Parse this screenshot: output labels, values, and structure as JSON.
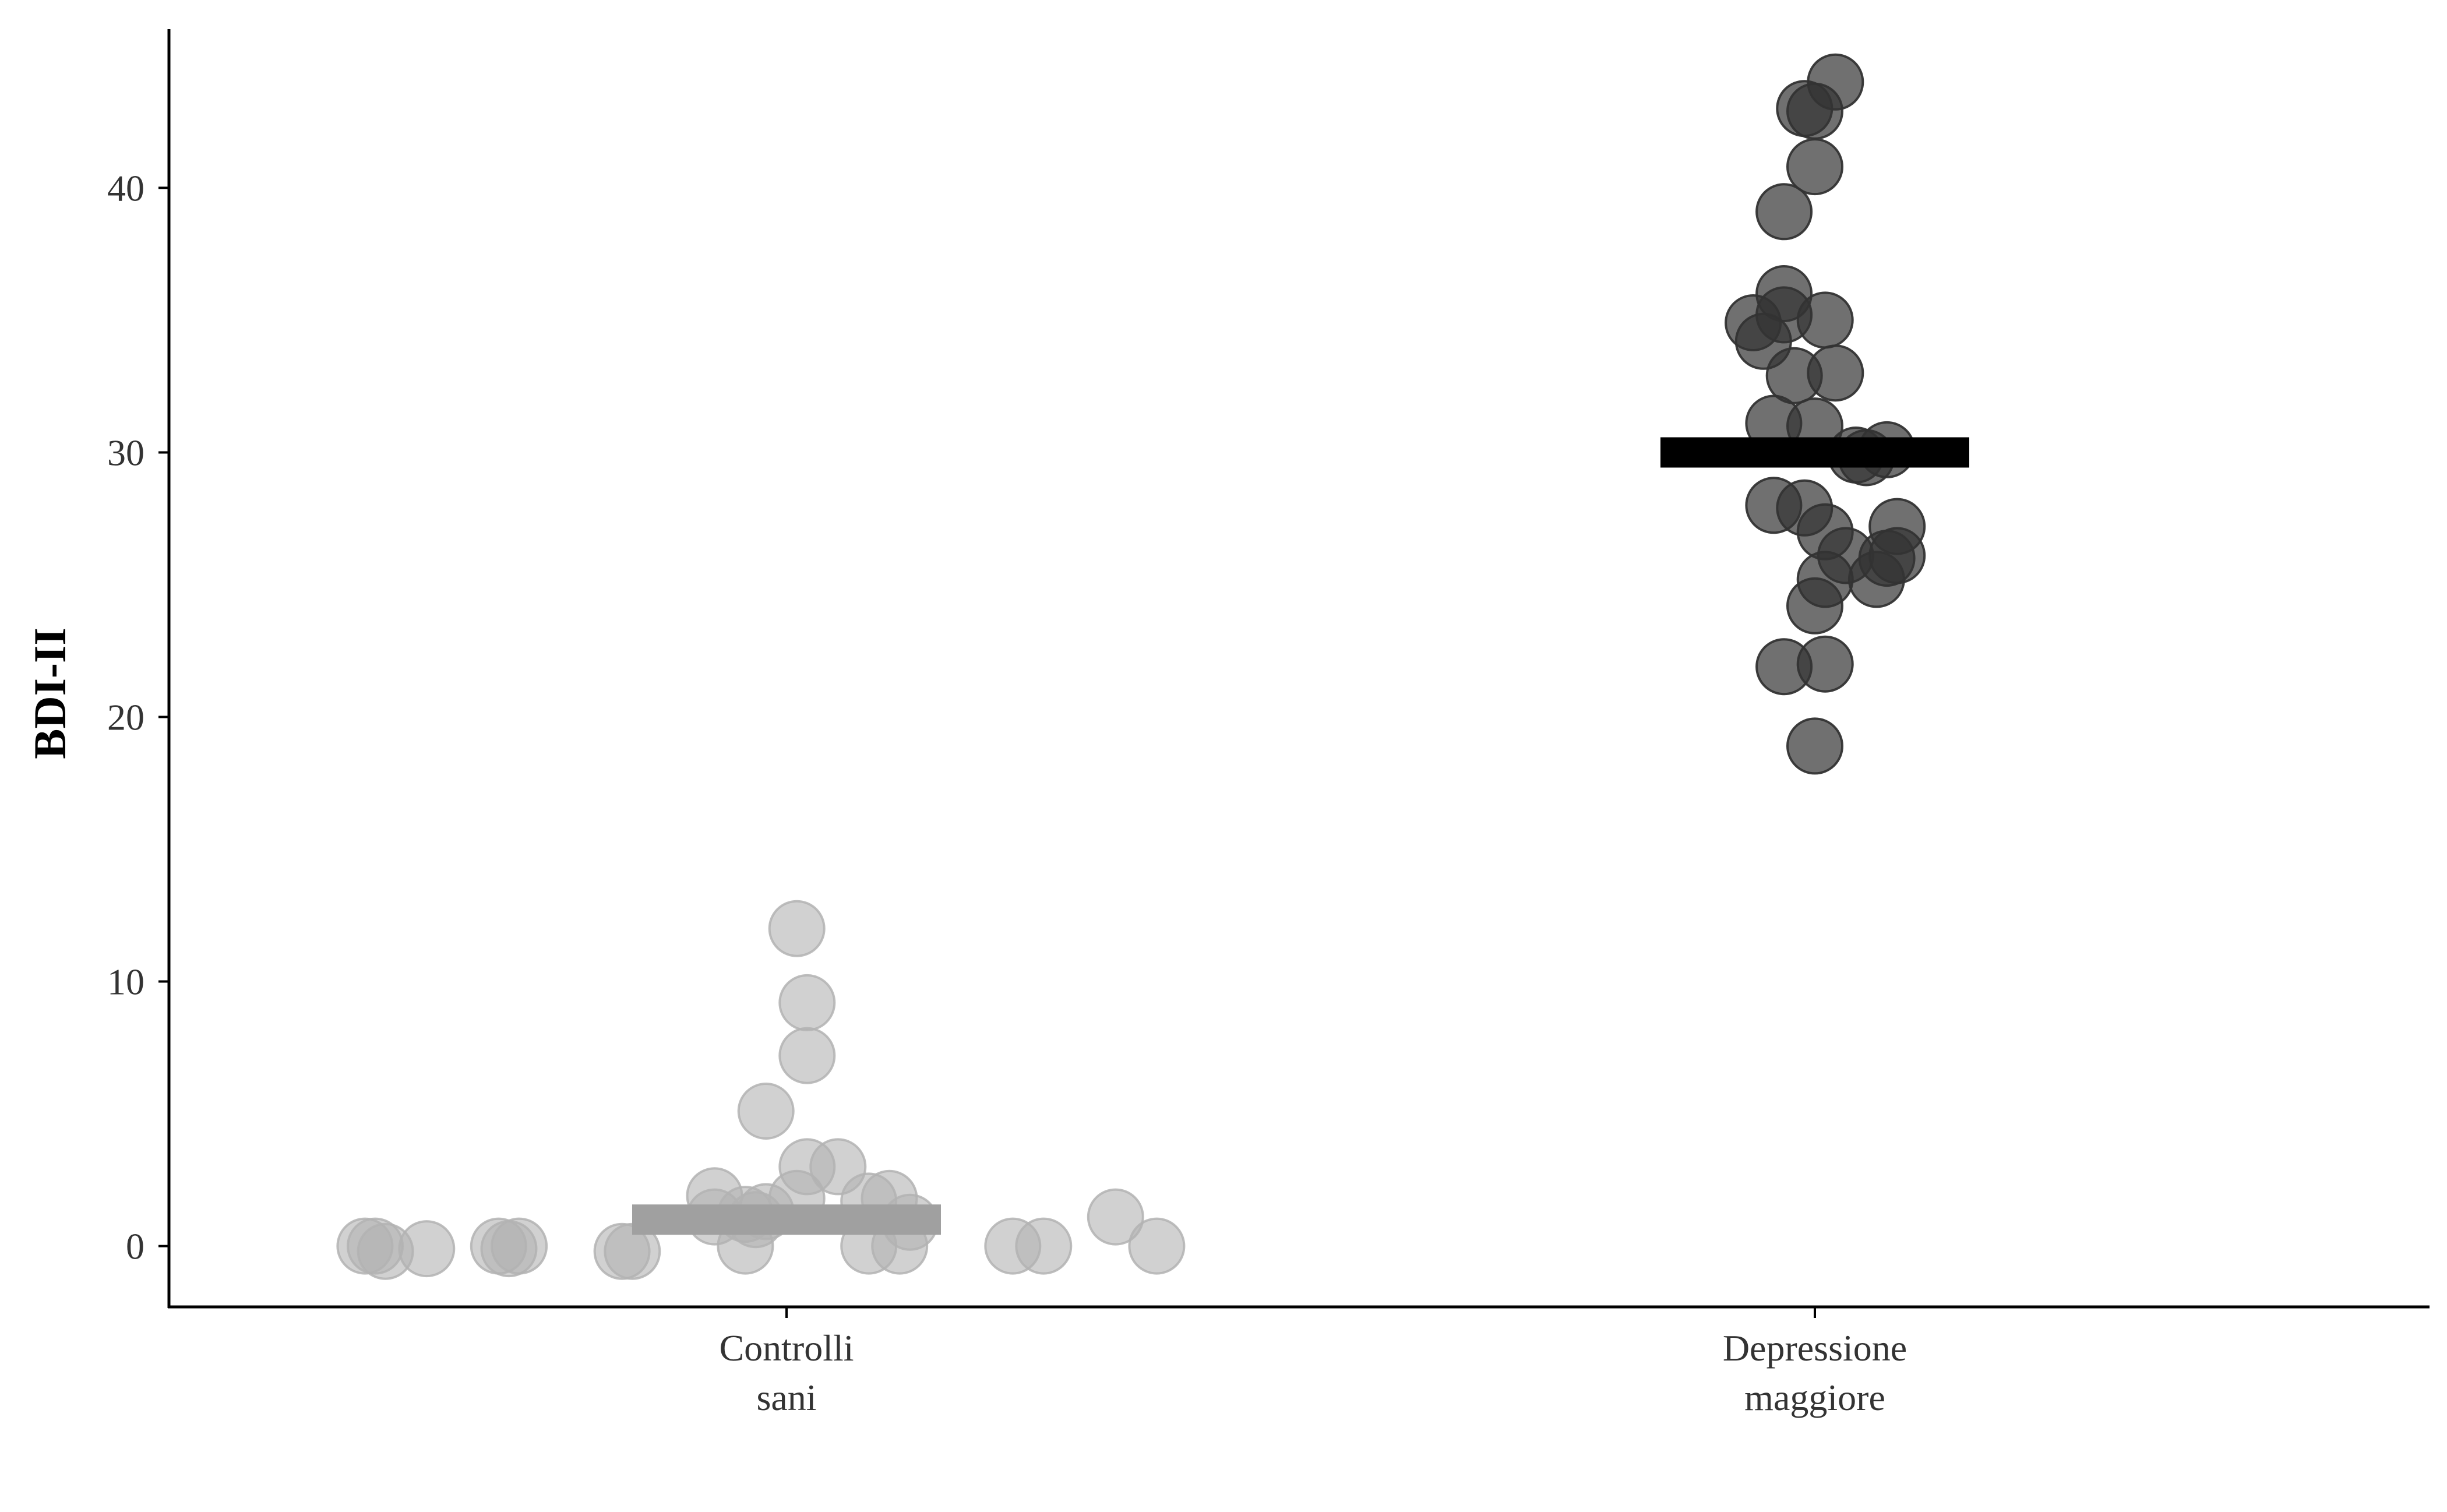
{
  "chart_data": {
    "type": "scatter",
    "title": "",
    "xlabel": "",
    "ylabel": "BDI-II",
    "ylim": [
      -2.3,
      46
    ],
    "yticks": [
      0,
      10,
      20,
      30,
      40
    ],
    "grid": false,
    "legend": "none",
    "categories": [
      {
        "label_lines": [
          "Controlli",
          "sani"
        ]
      },
      {
        "label_lines": [
          "Depressione",
          "maggiore"
        ]
      }
    ],
    "series": [
      {
        "name": "Controlli sani",
        "color": "#b3b3b3",
        "fill_opacity": 0.6,
        "mean": 1.0,
        "mean_color": "#a0a0a0",
        "points": [
          {
            "jitter": -0.41,
            "y": 0.0
          },
          {
            "jitter": -0.4,
            "y": 0.0
          },
          {
            "jitter": -0.39,
            "y": -0.2
          },
          {
            "jitter": -0.35,
            "y": -0.1
          },
          {
            "jitter": -0.28,
            "y": 0.0
          },
          {
            "jitter": -0.27,
            "y": -0.1
          },
          {
            "jitter": -0.26,
            "y": 0.0
          },
          {
            "jitter": -0.16,
            "y": -0.2
          },
          {
            "jitter": -0.15,
            "y": -0.2
          },
          {
            "jitter": -0.07,
            "y": 1.9
          },
          {
            "jitter": -0.07,
            "y": 1.1
          },
          {
            "jitter": -0.04,
            "y": 1.2
          },
          {
            "jitter": -0.04,
            "y": 0.0
          },
          {
            "jitter": -0.03,
            "y": 1.0
          },
          {
            "jitter": -0.02,
            "y": 1.3
          },
          {
            "jitter": -0.02,
            "y": 5.1
          },
          {
            "jitter": 0.01,
            "y": 12.0
          },
          {
            "jitter": 0.01,
            "y": 1.8
          },
          {
            "jitter": 0.02,
            "y": 9.2
          },
          {
            "jitter": 0.02,
            "y": 7.2
          },
          {
            "jitter": 0.02,
            "y": 3.0
          },
          {
            "jitter": 0.05,
            "y": 3.0
          },
          {
            "jitter": 0.08,
            "y": 1.7
          },
          {
            "jitter": 0.08,
            "y": 0.0
          },
          {
            "jitter": 0.1,
            "y": 1.8
          },
          {
            "jitter": 0.11,
            "y": 0.0
          },
          {
            "jitter": 0.12,
            "y": 0.9
          },
          {
            "jitter": 0.22,
            "y": 0.0
          },
          {
            "jitter": 0.25,
            "y": 0.0
          },
          {
            "jitter": 0.32,
            "y": 1.1
          },
          {
            "jitter": 0.36,
            "y": 0.0
          }
        ]
      },
      {
        "name": "Depressione maggiore",
        "color": "#333333",
        "fill_opacity": 0.7,
        "mean": 30.0,
        "mean_color": "#000000",
        "points": [
          {
            "jitter": 0.02,
            "y": 44.0
          },
          {
            "jitter": -0.01,
            "y": 43.0
          },
          {
            "jitter": 0.0,
            "y": 42.9
          },
          {
            "jitter": 0.0,
            "y": 40.8
          },
          {
            "jitter": -0.03,
            "y": 39.1
          },
          {
            "jitter": -0.03,
            "y": 36.0
          },
          {
            "jitter": -0.03,
            "y": 35.2
          },
          {
            "jitter": -0.06,
            "y": 34.9
          },
          {
            "jitter": -0.05,
            "y": 34.2
          },
          {
            "jitter": 0.01,
            "y": 35.0
          },
          {
            "jitter": -0.02,
            "y": 32.9
          },
          {
            "jitter": 0.02,
            "y": 33.0
          },
          {
            "jitter": -0.04,
            "y": 31.1
          },
          {
            "jitter": 0.0,
            "y": 31.0
          },
          {
            "jitter": 0.04,
            "y": 29.9
          },
          {
            "jitter": 0.05,
            "y": 29.8
          },
          {
            "jitter": 0.07,
            "y": 30.1
          },
          {
            "jitter": -0.04,
            "y": 28.0
          },
          {
            "jitter": -0.01,
            "y": 27.9
          },
          {
            "jitter": 0.01,
            "y": 27.0
          },
          {
            "jitter": 0.08,
            "y": 27.2
          },
          {
            "jitter": 0.03,
            "y": 26.1
          },
          {
            "jitter": 0.06,
            "y": 25.2
          },
          {
            "jitter": 0.07,
            "y": 26.0
          },
          {
            "jitter": 0.08,
            "y": 26.1
          },
          {
            "jitter": 0.01,
            "y": 25.2
          },
          {
            "jitter": 0.0,
            "y": 24.2
          },
          {
            "jitter": -0.03,
            "y": 21.9
          },
          {
            "jitter": 0.01,
            "y": 22.0
          },
          {
            "jitter": 0.0,
            "y": 18.9
          }
        ]
      }
    ]
  }
}
